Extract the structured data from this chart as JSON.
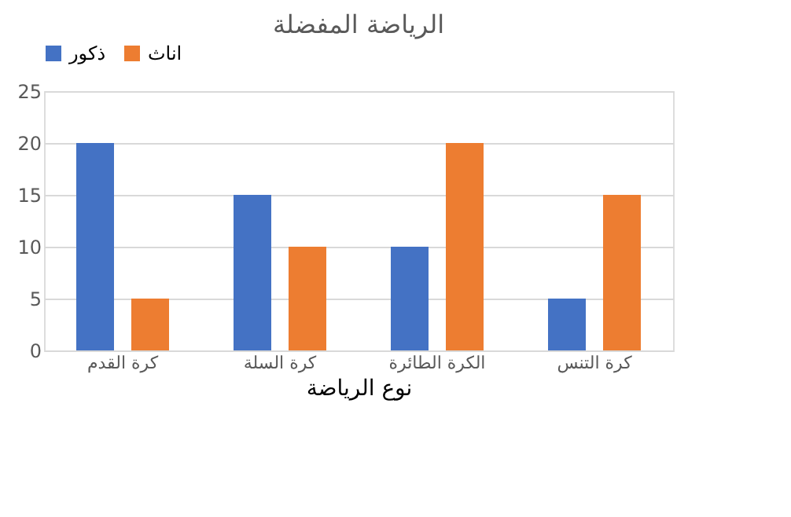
{
  "chart_data": {
    "type": "bar",
    "title": "الرياضة المفضلة",
    "xlabel": "نوع الرياضة",
    "categories": [
      "كرة القدم",
      "كرة السلة",
      "الكرة الطائرة",
      "كرة التنس"
    ],
    "series": [
      {
        "name": "ذكور",
        "color": "#4472c4",
        "values": [
          20,
          15,
          10,
          5
        ]
      },
      {
        "name": "اناث",
        "color": "#ed7d31",
        "values": [
          5,
          10,
          20,
          15
        ]
      }
    ],
    "ylim": [
      0,
      25
    ],
    "yticks": [
      0,
      5,
      10,
      15,
      20,
      25
    ],
    "grid": "y",
    "legend": "top"
  }
}
